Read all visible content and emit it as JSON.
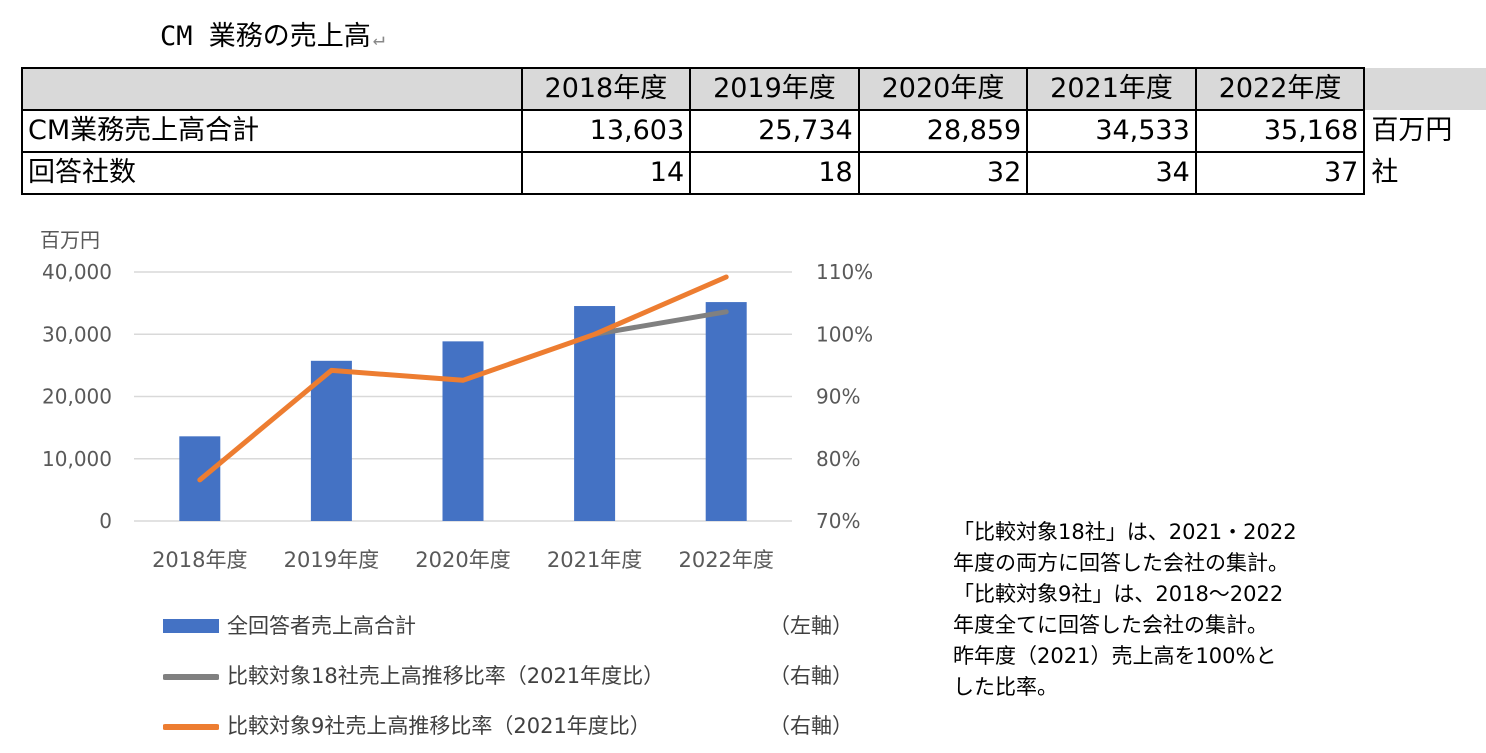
{
  "page": {
    "title": "CM 業務の売上高",
    "return_mark": "↵"
  },
  "table": {
    "headers": [
      "2018年度",
      "2019年度",
      "2020年度",
      "2021年度",
      "2022年度"
    ],
    "rows": [
      {
        "label": "CM業務売上高合計",
        "values": [
          "13,603",
          "25,734",
          "28,859",
          "34,533",
          "35,168"
        ],
        "unit": "百万円"
      },
      {
        "label": "回答社数",
        "values": [
          "14",
          "18",
          "32",
          "34",
          "37"
        ],
        "unit": "社"
      }
    ]
  },
  "chart_data": {
    "type": "bar",
    "categories": [
      "2018年度",
      "2019年度",
      "2020年度",
      "2021年度",
      "2022年度"
    ],
    "left_unit_label": "百万円",
    "left_axis": {
      "ylim": [
        0,
        40000
      ],
      "ticks": [
        "0",
        "10,000",
        "20,000",
        "30,000",
        "40,000"
      ]
    },
    "right_axis": {
      "ylim": [
        0.7,
        1.1
      ],
      "ticks": [
        "70%",
        "80%",
        "90%",
        "100%",
        "110%"
      ]
    },
    "grid": true,
    "series": [
      {
        "name": "全回答者売上高合計",
        "kind": "bar",
        "axis_label": "（左軸）",
        "color": "#4472c4",
        "values": [
          13603,
          25734,
          28859,
          34533,
          35168
        ]
      },
      {
        "name": "比較対象18社売上高推移比率（2021年度比）",
        "kind": "line",
        "axis_label": "（右軸）",
        "color": "#808080",
        "values": [
          null,
          null,
          null,
          1.0,
          1.036
        ]
      },
      {
        "name": "比較対象9社売上高推移比率（2021年度比）",
        "kind": "line",
        "axis_label": "（右軸）",
        "color": "#ed7d31",
        "values": [
          0.766,
          0.942,
          0.926,
          1.0,
          1.092
        ]
      }
    ],
    "legend_position": "bottom"
  },
  "note": {
    "lines": [
      "「比較対象18社」は、2021・2022",
      "年度の両方に回答した会社の集計。",
      "「比較対象9社」は、2018～2022",
      "年度全てに回答した会社の集計。",
      "昨年度（2021）売上高を100%と",
      "した比率。"
    ]
  }
}
